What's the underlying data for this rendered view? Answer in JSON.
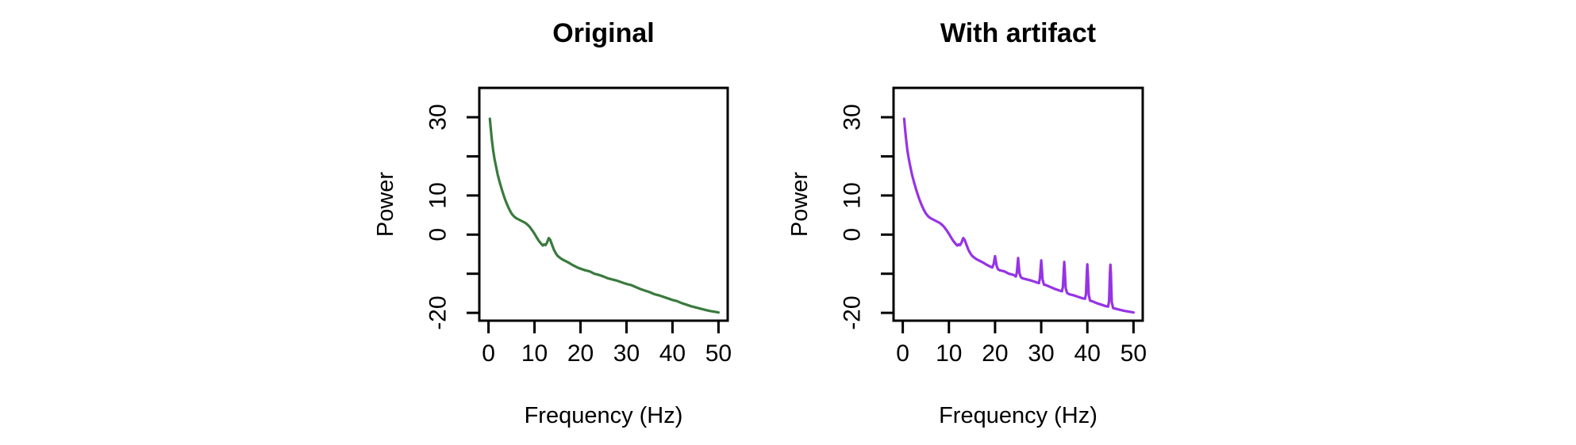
{
  "figure": {
    "background": "#FFFFFF",
    "text_color": "#000000",
    "axis_color": "#000000"
  },
  "chart_data": [
    {
      "type": "line",
      "title": "Original",
      "xlabel": "Frequency (Hz)",
      "ylabel": "Power",
      "line_color": "#3A7A3E",
      "grid": false,
      "legend_position": "none",
      "xlim": [
        0,
        50
      ],
      "ylim": [
        -20,
        30
      ],
      "xticks": [
        0,
        10,
        20,
        30,
        40,
        50
      ],
      "xtick_labels": [
        "0",
        "10",
        "20",
        "30",
        "40",
        "50"
      ],
      "yticks": [
        30,
        20,
        10,
        0,
        -10,
        -20
      ],
      "ytick_labels": [
        "30",
        "",
        "10",
        "0",
        "",
        "-20"
      ],
      "series": [
        {
          "name": "power-spectrum-original",
          "points": [
            [
              0.3,
              29.6
            ],
            [
              0.5,
              27.0
            ],
            [
              0.7,
              24.6
            ],
            [
              1,
              21.6
            ],
            [
              1.3,
              19.4
            ],
            [
              1.6,
              17.6
            ],
            [
              2,
              15.3
            ],
            [
              2.5,
              13.1
            ],
            [
              3,
              11.1
            ],
            [
              3.5,
              9.3
            ],
            [
              4,
              7.8
            ],
            [
              4.5,
              6.5
            ],
            [
              5,
              5.4
            ],
            [
              5.5,
              4.7
            ],
            [
              6,
              4.2
            ],
            [
              6.5,
              3.9
            ],
            [
              7,
              3.6
            ],
            [
              7.5,
              3.3
            ],
            [
              8,
              3.0
            ],
            [
              8.5,
              2.5
            ],
            [
              9,
              1.9
            ],
            [
              9.5,
              1.1
            ],
            [
              10,
              0.2
            ],
            [
              10.5,
              -0.8
            ],
            [
              11,
              -1.7
            ],
            [
              11.5,
              -2.4
            ],
            [
              11.8,
              -2.8
            ],
            [
              12.1,
              -2.5
            ],
            [
              12.4,
              -2.7
            ],
            [
              12.7,
              -2.1
            ],
            [
              13.1,
              -0.9
            ],
            [
              13.4,
              -1.3
            ],
            [
              13.8,
              -2.6
            ],
            [
              14.2,
              -3.8
            ],
            [
              14.6,
              -4.7
            ],
            [
              15,
              -5.4
            ],
            [
              15.5,
              -5.9
            ],
            [
              16,
              -6.3
            ],
            [
              16.5,
              -6.6
            ],
            [
              17,
              -6.9
            ],
            [
              17.5,
              -7.2
            ],
            [
              18,
              -7.6
            ],
            [
              18.5,
              -7.9
            ],
            [
              19,
              -8.2
            ],
            [
              19.5,
              -8.5
            ],
            [
              20,
              -8.7
            ],
            [
              21,
              -9.1
            ],
            [
              22,
              -9.4
            ],
            [
              23,
              -10.0
            ],
            [
              24,
              -10.3
            ],
            [
              25,
              -10.7
            ],
            [
              26,
              -11.2
            ],
            [
              27,
              -11.5
            ],
            [
              28,
              -11.8
            ],
            [
              29,
              -12.2
            ],
            [
              30,
              -12.6
            ],
            [
              31,
              -12.9
            ],
            [
              32,
              -13.4
            ],
            [
              33,
              -13.9
            ],
            [
              34,
              -14.3
            ],
            [
              35,
              -14.7
            ],
            [
              36,
              -15.2
            ],
            [
              37,
              -15.5
            ],
            [
              38,
              -15.9
            ],
            [
              39,
              -16.3
            ],
            [
              40,
              -16.7
            ],
            [
              41,
              -17.0
            ],
            [
              42,
              -17.5
            ],
            [
              43,
              -17.9
            ],
            [
              44,
              -18.3
            ],
            [
              45,
              -18.6
            ],
            [
              46,
              -18.9
            ],
            [
              47,
              -19.2
            ],
            [
              48,
              -19.5
            ],
            [
              49,
              -19.7
            ],
            [
              50,
              -19.9
            ]
          ]
        }
      ]
    },
    {
      "type": "line",
      "title": "With artifact",
      "xlabel": "Frequency (Hz)",
      "ylabel": "Power",
      "line_color": "#9633E6",
      "grid": false,
      "legend_position": "none",
      "xlim": [
        0,
        50
      ],
      "ylim": [
        -20,
        30
      ],
      "xticks": [
        0,
        10,
        20,
        30,
        40,
        50
      ],
      "xtick_labels": [
        "0",
        "10",
        "20",
        "30",
        "40",
        "50"
      ],
      "yticks": [
        30,
        20,
        10,
        0,
        -10,
        -20
      ],
      "ytick_labels": [
        "30",
        "",
        "10",
        "0",
        "",
        "-20"
      ],
      "artifact_spike_frequencies_hz": [
        20,
        25,
        30,
        35,
        40,
        45
      ],
      "series": [
        {
          "name": "power-spectrum-with-artifact",
          "points": [
            [
              0.3,
              29.6
            ],
            [
              0.5,
              27.0
            ],
            [
              0.7,
              24.6
            ],
            [
              1,
              21.6
            ],
            [
              1.3,
              19.4
            ],
            [
              1.6,
              17.6
            ],
            [
              2,
              15.3
            ],
            [
              2.5,
              13.1
            ],
            [
              3,
              11.1
            ],
            [
              3.5,
              9.3
            ],
            [
              4,
              7.8
            ],
            [
              4.5,
              6.5
            ],
            [
              5,
              5.4
            ],
            [
              5.5,
              4.7
            ],
            [
              6,
              4.2
            ],
            [
              6.5,
              3.9
            ],
            [
              7,
              3.6
            ],
            [
              7.5,
              3.3
            ],
            [
              8,
              3.0
            ],
            [
              8.5,
              2.5
            ],
            [
              9,
              1.9
            ],
            [
              9.5,
              1.1
            ],
            [
              10,
              0.2
            ],
            [
              10.5,
              -0.8
            ],
            [
              11,
              -1.7
            ],
            [
              11.5,
              -2.4
            ],
            [
              11.8,
              -2.8
            ],
            [
              12.1,
              -2.5
            ],
            [
              12.4,
              -2.7
            ],
            [
              12.7,
              -2.1
            ],
            [
              13.1,
              -0.9
            ],
            [
              13.4,
              -1.3
            ],
            [
              13.8,
              -2.6
            ],
            [
              14.2,
              -3.8
            ],
            [
              14.6,
              -4.7
            ],
            [
              15,
              -5.4
            ],
            [
              15.5,
              -5.9
            ],
            [
              16,
              -6.3
            ],
            [
              16.5,
              -6.6
            ],
            [
              17,
              -6.9
            ],
            [
              17.5,
              -7.2
            ],
            [
              18,
              -7.6
            ],
            [
              18.5,
              -7.9
            ],
            [
              19,
              -8.2
            ],
            [
              19.4,
              -8.4
            ],
            [
              19.7,
              -7.5
            ],
            [
              19.9,
              -6.2
            ],
            [
              20,
              -5.5
            ],
            [
              20.1,
              -6.2
            ],
            [
              20.3,
              -7.8
            ],
            [
              20.6,
              -8.8
            ],
            [
              21,
              -9.1
            ],
            [
              22,
              -9.4
            ],
            [
              23,
              -10.0
            ],
            [
              24,
              -10.3
            ],
            [
              24.5,
              -10.7
            ],
            [
              24.7,
              -9.8
            ],
            [
              24.9,
              -7.4
            ],
            [
              25,
              -6.0
            ],
            [
              25.1,
              -7.4
            ],
            [
              25.3,
              -9.9
            ],
            [
              25.6,
              -10.9
            ],
            [
              26,
              -11.2
            ],
            [
              27,
              -11.5
            ],
            [
              28,
              -11.8
            ],
            [
              29,
              -12.2
            ],
            [
              29.5,
              -12.4
            ],
            [
              29.7,
              -11.3
            ],
            [
              29.9,
              -8.2
            ],
            [
              30,
              -6.6
            ],
            [
              30.1,
              -8.2
            ],
            [
              30.3,
              -11.5
            ],
            [
              30.6,
              -12.8
            ],
            [
              31,
              -12.9
            ],
            [
              32,
              -13.4
            ],
            [
              33,
              -13.9
            ],
            [
              34,
              -14.3
            ],
            [
              34.5,
              -14.5
            ],
            [
              34.7,
              -13.4
            ],
            [
              34.9,
              -8.8
            ],
            [
              35,
              -7.0
            ],
            [
              35.1,
              -8.8
            ],
            [
              35.3,
              -13.6
            ],
            [
              35.6,
              -14.9
            ],
            [
              36,
              -15.2
            ],
            [
              37,
              -15.5
            ],
            [
              38,
              -15.9
            ],
            [
              39,
              -16.3
            ],
            [
              39.5,
              -16.4
            ],
            [
              39.7,
              -15.2
            ],
            [
              39.9,
              -9.6
            ],
            [
              40,
              -7.6
            ],
            [
              40.1,
              -9.6
            ],
            [
              40.3,
              -15.4
            ],
            [
              40.6,
              -16.9
            ],
            [
              41,
              -17.0
            ],
            [
              42,
              -17.5
            ],
            [
              43,
              -17.9
            ],
            [
              44,
              -18.3
            ],
            [
              44.5,
              -18.4
            ],
            [
              44.7,
              -17.0
            ],
            [
              44.9,
              -9.9
            ],
            [
              45,
              -7.7
            ],
            [
              45.1,
              -9.9
            ],
            [
              45.3,
              -17.3
            ],
            [
              45.6,
              -18.8
            ],
            [
              46,
              -18.9
            ],
            [
              47,
              -19.2
            ],
            [
              48,
              -19.5
            ],
            [
              49,
              -19.7
            ],
            [
              50,
              -19.9
            ]
          ]
        }
      ]
    }
  ]
}
